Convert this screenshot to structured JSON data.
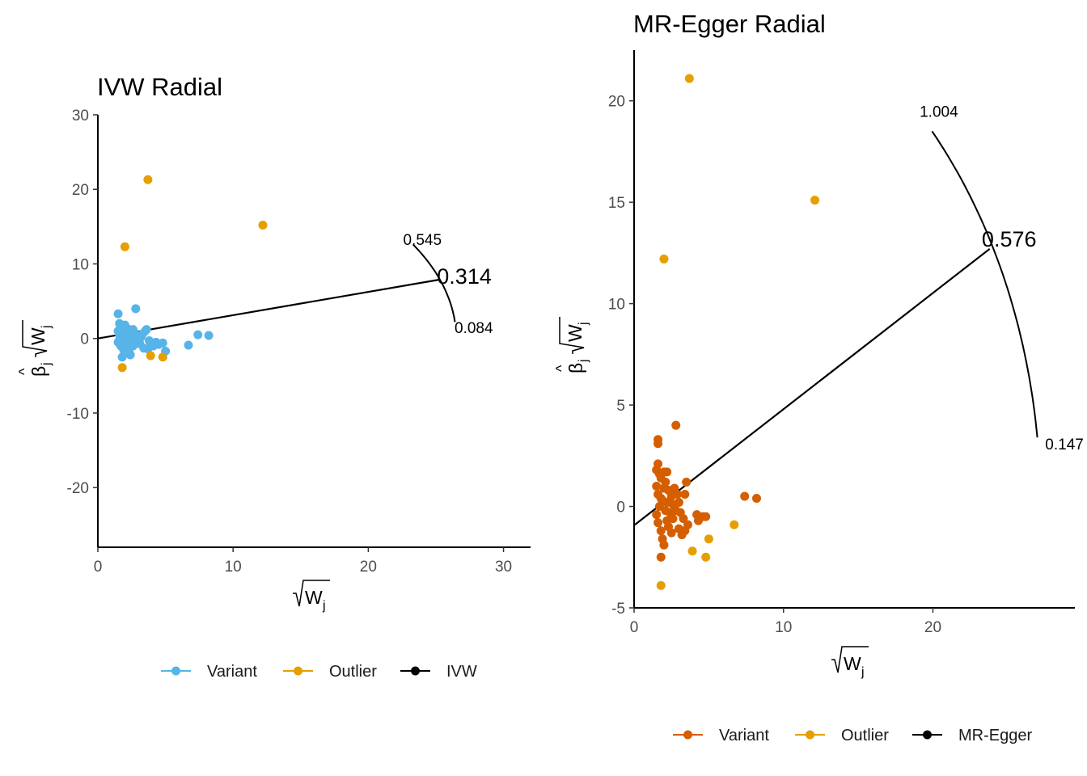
{
  "chart_data": [
    {
      "type": "scatter",
      "title": "IVW Radial",
      "xlabel": "√Wj",
      "ylabel": "β̂j √Wj",
      "xlim": [
        0,
        32
      ],
      "ylim": [
        -28,
        30
      ],
      "xticks": [
        0,
        10,
        20,
        30
      ],
      "xtick_labels": [
        "0",
        "10",
        "20",
        "30"
      ],
      "yticks": [
        -20,
        -10,
        0,
        10,
        20,
        30
      ],
      "ytick_labels": [
        "-20",
        "-10",
        "0",
        "10",
        "20",
        "30"
      ],
      "grid": false,
      "legend_position": "bottom",
      "legend": [
        {
          "label": "Variant",
          "color": "#56B4E9"
        },
        {
          "label": "Outlier",
          "color": "#E69F00"
        },
        {
          "label": "IVW",
          "color": "#000000"
        }
      ],
      "series": [
        {
          "name": "Variant",
          "color": "#56B4E9",
          "points": [
            [
              1.5,
              3.3
            ],
            [
              2.8,
              4.0
            ],
            [
              1.6,
              2.0
            ],
            [
              1.7,
              1.5
            ],
            [
              1.5,
              1.0
            ],
            [
              1.6,
              0.5
            ],
            [
              1.8,
              0.0
            ],
            [
              1.5,
              -0.5
            ],
            [
              1.7,
              -1.0
            ],
            [
              1.9,
              -1.5
            ],
            [
              2.0,
              -2.0
            ],
            [
              1.8,
              -2.5
            ],
            [
              2.1,
              1.0
            ],
            [
              2.3,
              0.5
            ],
            [
              2.5,
              0.0
            ],
            [
              2.2,
              -0.3
            ],
            [
              2.4,
              -0.8
            ],
            [
              2.6,
              1.2
            ],
            [
              2.7,
              0.8
            ],
            [
              2.9,
              0.3
            ],
            [
              3.0,
              -0.2
            ],
            [
              3.1,
              -0.7
            ],
            [
              3.3,
              0.6
            ],
            [
              3.5,
              1.0
            ],
            [
              3.6,
              1.2
            ],
            [
              2.0,
              1.8
            ],
            [
              2.2,
              1.3
            ],
            [
              1.9,
              0.7
            ],
            [
              2.1,
              -1.2
            ],
            [
              2.3,
              -1.6
            ],
            [
              2.4,
              -2.2
            ],
            [
              2.6,
              -1.0
            ],
            [
              3.4,
              -1.3
            ],
            [
              3.7,
              -1.4
            ],
            [
              4.1,
              -1.0
            ],
            [
              4.3,
              -0.5
            ],
            [
              4.5,
              -0.8
            ],
            [
              4.8,
              -0.6
            ],
            [
              5.0,
              -1.7
            ],
            [
              6.7,
              -0.9
            ],
            [
              7.4,
              0.5
            ],
            [
              8.2,
              0.4
            ],
            [
              1.6,
              -0.2
            ],
            [
              1.8,
              0.9
            ],
            [
              2.0,
              0.2
            ],
            [
              2.2,
              -0.6
            ],
            [
              2.5,
              0.6
            ],
            [
              2.8,
              -0.4
            ],
            [
              3.2,
              0.2
            ],
            [
              3.8,
              -0.3
            ]
          ]
        },
        {
          "name": "Outlier",
          "color": "#E69F00",
          "points": [
            [
              3.7,
              21.3
            ],
            [
              12.2,
              15.2
            ],
            [
              2.0,
              12.3
            ],
            [
              1.8,
              -3.9
            ],
            [
              3.9,
              -2.3
            ],
            [
              4.8,
              -2.5
            ]
          ]
        }
      ],
      "fit_line": {
        "name": "IVW",
        "x": [
          0,
          25.3
        ],
        "y": [
          0,
          7.9
        ],
        "color": "#000000"
      },
      "annotations": [
        {
          "label": "0.545",
          "x": 24.0,
          "y": 13.3
        },
        {
          "label": "0.314",
          "x": 27.1,
          "y": 8.1,
          "emphasis": true
        },
        {
          "label": "0.084",
          "x": 27.8,
          "y": 1.5
        }
      ],
      "arc": {
        "radius": 26.5,
        "start_y": 12.6,
        "end_y": 2.2
      }
    },
    {
      "type": "scatter",
      "title": "MR-Egger Radial",
      "xlabel": "√Wj",
      "ylabel": "β̂j √Wj",
      "xlim": [
        0,
        29.5
      ],
      "ylim": [
        -5,
        22.5
      ],
      "xticks": [
        0,
        10,
        20
      ],
      "xtick_labels": [
        "0",
        "10",
        "20"
      ],
      "yticks": [
        -5,
        0,
        5,
        10,
        15,
        20
      ],
      "ytick_labels": [
        "-5",
        "0",
        "5",
        "10",
        "15",
        "20"
      ],
      "grid": false,
      "legend_position": "bottom",
      "legend": [
        {
          "label": "Variant",
          "color": "#D55E00"
        },
        {
          "label": "Outlier",
          "color": "#E69F00"
        },
        {
          "label": "MR-Egger",
          "color": "#000000"
        }
      ],
      "series": [
        {
          "name": "Variant",
          "color": "#D55E00",
          "points": [
            [
              1.6,
              3.3
            ],
            [
              1.6,
              3.1
            ],
            [
              2.8,
              4.0
            ],
            [
              1.6,
              2.1
            ],
            [
              1.5,
              1.8
            ],
            [
              1.7,
              1.6
            ],
            [
              1.8,
              1.4
            ],
            [
              2.0,
              1.7
            ],
            [
              2.2,
              1.7
            ],
            [
              2.1,
              1.2
            ],
            [
              1.5,
              1.0
            ],
            [
              1.6,
              0.6
            ],
            [
              1.8,
              0.4
            ],
            [
              1.7,
              0.0
            ],
            [
              1.5,
              -0.4
            ],
            [
              1.6,
              -0.8
            ],
            [
              1.8,
              -1.2
            ],
            [
              1.9,
              -1.6
            ],
            [
              2.0,
              -1.9
            ],
            [
              1.8,
              -2.5
            ],
            [
              2.3,
              0.8
            ],
            [
              2.5,
              0.5
            ],
            [
              2.6,
              0.1
            ],
            [
              2.4,
              -0.3
            ],
            [
              2.2,
              -0.7
            ],
            [
              2.7,
              0.9
            ],
            [
              2.9,
              0.6
            ],
            [
              3.0,
              0.2
            ],
            [
              3.1,
              -0.3
            ],
            [
              3.3,
              -0.6
            ],
            [
              3.5,
              1.2
            ],
            [
              3.4,
              0.6
            ],
            [
              3.6,
              -0.9
            ],
            [
              3.2,
              -1.4
            ],
            [
              3.4,
              -1.2
            ],
            [
              4.2,
              -0.4
            ],
            [
              4.3,
              -0.7
            ],
            [
              4.6,
              -0.5
            ],
            [
              4.8,
              -0.5
            ],
            [
              7.4,
              0.5
            ],
            [
              8.2,
              0.4
            ],
            [
              1.9,
              0.3
            ],
            [
              2.1,
              -0.2
            ],
            [
              2.3,
              -1.0
            ],
            [
              2.5,
              -1.3
            ],
            [
              2.0,
              0.9
            ],
            [
              2.2,
              0.2
            ],
            [
              2.6,
              -0.6
            ],
            [
              2.8,
              -0.2
            ],
            [
              3.0,
              -1.1
            ]
          ]
        },
        {
          "name": "Outlier",
          "color": "#E69F00",
          "points": [
            [
              3.7,
              21.1
            ],
            [
              12.1,
              15.1
            ],
            [
              2.0,
              12.2
            ],
            [
              1.8,
              -3.9
            ],
            [
              3.9,
              -2.2
            ],
            [
              4.8,
              -2.5
            ],
            [
              5.0,
              -1.6
            ],
            [
              6.7,
              -0.9
            ]
          ]
        }
      ],
      "fit_line": {
        "name": "MR-Egger",
        "x": [
          0,
          23.8
        ],
        "y": [
          -0.93,
          12.7
        ],
        "color": "#000000"
      },
      "annotations": [
        {
          "label": "1.004",
          "x": 20.4,
          "y": 19.5
        },
        {
          "label": "0.576",
          "x": 25.1,
          "y": 13.1,
          "emphasis": true
        },
        {
          "label": "0.147",
          "x": 28.8,
          "y": 3.1
        }
      ],
      "arc": {
        "radius": 27.2,
        "start_y": 18.5,
        "end_y": 3.4
      }
    }
  ]
}
